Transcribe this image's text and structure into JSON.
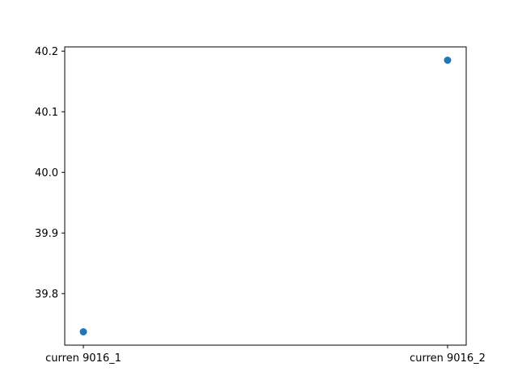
{
  "chart_data": {
    "type": "scatter",
    "categories": [
      "curren 9016_1",
      "curren 9016_2"
    ],
    "series": [
      {
        "values": [
          39.737,
          40.185
        ],
        "color": "#1f77b4"
      }
    ],
    "title": "",
    "xlabel": "",
    "ylabel": "",
    "ylim": [
      39.715,
      40.207
    ],
    "y_ticks": [
      39.8,
      39.9,
      40.0,
      40.1,
      40.2
    ],
    "y_tick_labels": [
      "39.8",
      "39.9",
      "40.0",
      "40.1",
      "40.2"
    ],
    "grid": false,
    "legend": "none"
  }
}
